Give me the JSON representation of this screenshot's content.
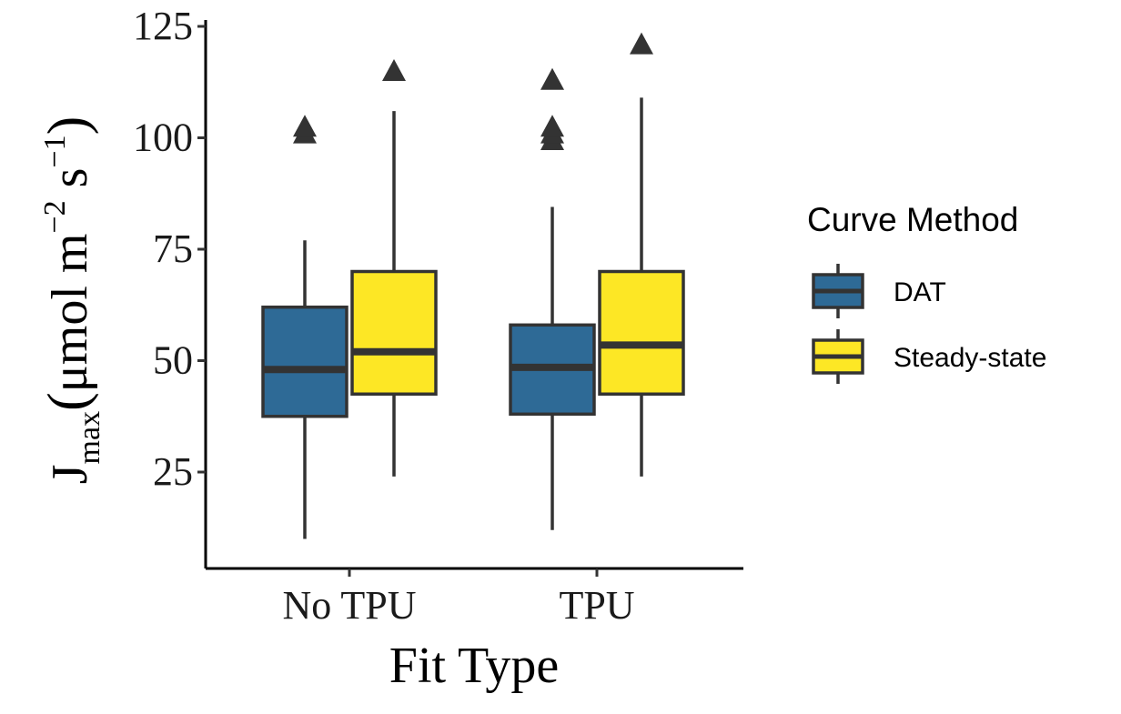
{
  "chart_data": {
    "type": "box",
    "xlabel": "Fit Type",
    "ylabel": {
      "main": "J",
      "subscript": "max",
      "open": "(",
      "unit_text": "μmol m",
      "exp1": "−2",
      "unit_text2": " s",
      "exp2": "−1",
      "close": ")"
    },
    "ylim": [
      5,
      125
    ],
    "yticks": [
      25,
      50,
      75,
      100,
      125
    ],
    "categories": [
      "No TPU",
      "TPU"
    ],
    "legend": {
      "title": "Curve Method",
      "position": "right"
    },
    "grid": false,
    "series": [
      {
        "name": "DAT",
        "color": "#2e6a96",
        "boxes": [
          {
            "category": "No TPU",
            "whisker_low": 10,
            "q1": 37.5,
            "median": 48,
            "q3": 62,
            "whisker_high": 77,
            "outliers": [
              101,
              102.5
            ]
          },
          {
            "category": "TPU",
            "whisker_low": 12,
            "q1": 38,
            "median": 48.5,
            "q3": 58,
            "whisker_high": 84.5,
            "outliers": [
              99.5,
              101,
              102.5,
              113
            ]
          }
        ]
      },
      {
        "name": "Steady-state",
        "color": "#fde725",
        "boxes": [
          {
            "category": "No TPU",
            "whisker_low": 24,
            "q1": 42.5,
            "median": 52,
            "q3": 70,
            "whisker_high": 106,
            "outliers": [
              115
            ]
          },
          {
            "category": "TPU",
            "whisker_low": 24,
            "q1": 42.5,
            "median": 53.5,
            "q3": 70,
            "whisker_high": 109,
            "outliers": [
              121
            ]
          }
        ]
      }
    ]
  }
}
